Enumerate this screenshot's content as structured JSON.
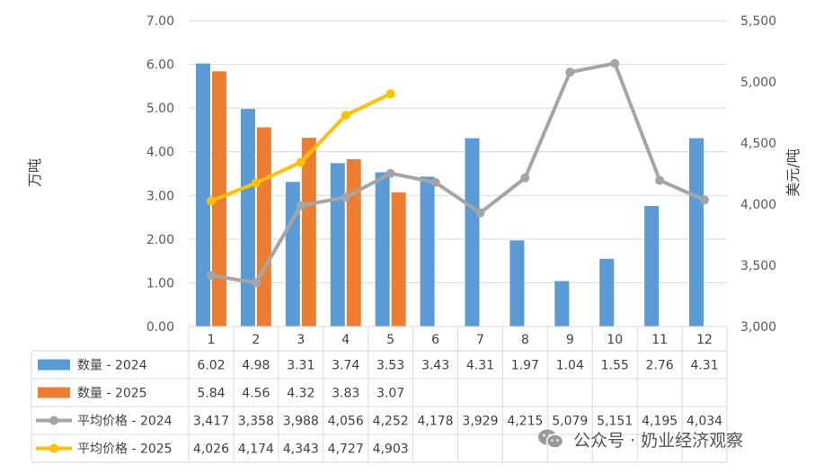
{
  "colors": {
    "qty2024": "#5B9BD5",
    "qty2025": "#ED7D31",
    "price2024": "#A5A5A5",
    "price2025": "#FFC000"
  },
  "watermark": {
    "text": "公众号 · 奶业经济观察",
    "icon": "wechat-icon"
  },
  "chart_data": {
    "type": "bar",
    "title": "",
    "categories": [
      "1",
      "2",
      "3",
      "4",
      "5",
      "6",
      "7",
      "8",
      "9",
      "10",
      "11",
      "12"
    ],
    "y_left": {
      "label": "万吨",
      "range": [
        0,
        7
      ],
      "ticks": [
        "0.00",
        "1.00",
        "2.00",
        "3.00",
        "4.00",
        "5.00",
        "6.00",
        "7.00"
      ]
    },
    "y_right": {
      "label": "美元/吨",
      "range": [
        3000,
        5500
      ],
      "ticks": [
        "3,000",
        "3,500",
        "4,000",
        "4,500",
        "5,000",
        "5,500"
      ]
    },
    "grid": true,
    "legend": "data-table-bottom",
    "series": [
      {
        "name": "数量 - 2024",
        "type": "bar",
        "axis": "left",
        "values": [
          6.02,
          4.98,
          3.31,
          3.74,
          3.53,
          3.43,
          4.31,
          1.97,
          1.04,
          1.55,
          2.76,
          4.31
        ],
        "labels": [
          "6.02",
          "4.98",
          "3.31",
          "3.74",
          "3.53",
          "3.43",
          "4.31",
          "1.97",
          "1.04",
          "1.55",
          "2.76",
          "4.31"
        ]
      },
      {
        "name": "数量 - 2025",
        "type": "bar",
        "axis": "left",
        "values": [
          5.84,
          4.56,
          4.32,
          3.83,
          3.07,
          null,
          null,
          null,
          null,
          null,
          null,
          null
        ],
        "labels": [
          "5.84",
          "4.56",
          "4.32",
          "3.83",
          "3.07",
          "",
          "",
          "",
          "",
          "",
          "",
          ""
        ]
      },
      {
        "name": "平均价格 - 2024",
        "type": "line",
        "axis": "right",
        "values": [
          3417,
          3358,
          3988,
          4056,
          4252,
          4178,
          3929,
          4215,
          5079,
          5151,
          4195,
          4034
        ],
        "labels": [
          "3,417",
          "3,358",
          "3,988",
          "4,056",
          "4,252",
          "4,178",
          "3,929",
          "4,215",
          "5,079",
          "5,151",
          "4,195",
          "4,034"
        ]
      },
      {
        "name": "平均价格 - 2025",
        "type": "line",
        "axis": "right",
        "values": [
          4026,
          4174,
          4343,
          4727,
          4903,
          null,
          null,
          null,
          null,
          null,
          null,
          null
        ],
        "labels": [
          "4,026",
          "4,174",
          "4,343",
          "4,727",
          "4,903",
          "",
          "",
          "",
          "",
          "",
          "",
          ""
        ]
      }
    ]
  }
}
